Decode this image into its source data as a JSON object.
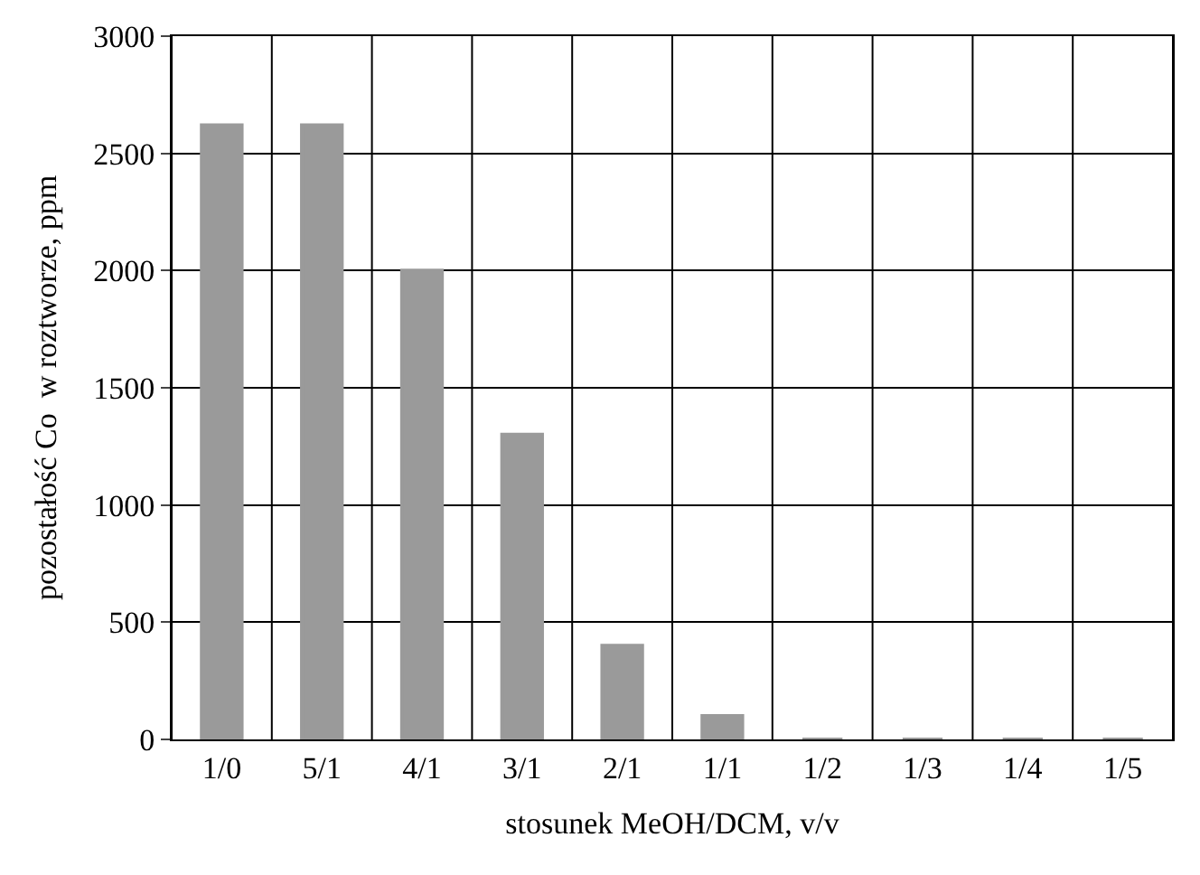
{
  "chart_data": {
    "type": "bar",
    "xlabel": "stosunek MeOH/DCM, v/v",
    "ylabel": "pozostałość Co  w roztworze, ppm",
    "categories": [
      "1/0",
      "5/1",
      "4/1",
      "3/1",
      "2/1",
      "1/1",
      "1/2",
      "1/3",
      "1/4",
      "1/5"
    ],
    "values": [
      2620,
      2620,
      2000,
      1300,
      400,
      100,
      0,
      0,
      0,
      0
    ],
    "color": "#9a9a9a",
    "ylim": [
      0,
      3000
    ],
    "yticks": [
      0,
      500,
      1000,
      1500,
      2000,
      2500,
      3000
    ],
    "grid": true
  }
}
